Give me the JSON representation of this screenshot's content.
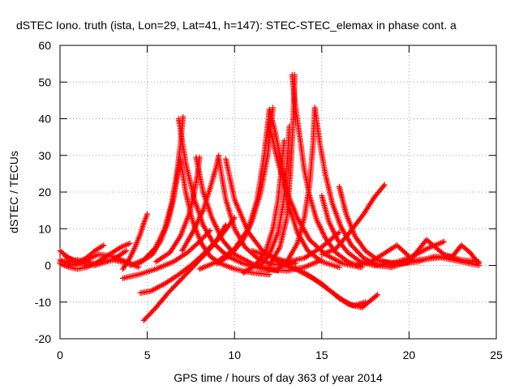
{
  "chart_data": {
    "type": "scatter",
    "title": "dSTEC Iono. truth (ista, Lon=29, Lat=41, h=147): STEC-STEC_elemax in phase cont. a",
    "xlabel": "GPS time / hours of day 363 of year 2014",
    "ylabel": "dSTEC  / TECUs",
    "xlim": [
      0,
      25
    ],
    "ylim": [
      -20,
      60
    ],
    "x_ticks": [
      0,
      5,
      10,
      15,
      20,
      25
    ],
    "y_ticks": [
      -20,
      -10,
      0,
      10,
      20,
      30,
      40,
      50,
      60
    ],
    "grid": true,
    "marker": "plus",
    "color": "#ff0000",
    "series": [
      {
        "x": [
          0.0,
          0.5,
          1.0,
          1.5,
          2.0,
          2.5
        ],
        "y": [
          4.0,
          2.0,
          0.8,
          2.0,
          4.0,
          5.5
        ]
      },
      {
        "x": [
          0.0,
          0.5,
          1.0,
          1.5,
          2.0,
          2.5,
          3.0,
          3.5,
          4.0
        ],
        "y": [
          0.5,
          -0.5,
          -1.0,
          -0.5,
          0.5,
          2.0,
          3.5,
          5.0,
          6.0
        ]
      },
      {
        "x": [
          0.0,
          0.8,
          1.5,
          2.2,
          3.0,
          3.8,
          4.5
        ],
        "y": [
          1.5,
          0.0,
          1.5,
          3.0,
          2.5,
          1.0,
          -0.5
        ]
      },
      {
        "x": [
          0.3,
          1.2,
          2.0,
          3.0,
          3.8
        ],
        "y": [
          2.5,
          0.5,
          0.0,
          1.5,
          4.0
        ]
      },
      {
        "x": [
          0.0,
          1.0,
          2.0,
          3.0,
          4.0
        ],
        "y": [
          1.0,
          1.5,
          0.5,
          1.5,
          0.5
        ]
      },
      {
        "x": [
          3.6,
          4.0,
          4.3,
          4.6,
          4.8,
          5.0
        ],
        "y": [
          -1.0,
          2.0,
          5.0,
          8.5,
          11.5,
          14.0
        ]
      },
      {
        "x": [
          3.6,
          4.5,
          5.5,
          6.5,
          7.3,
          8.0,
          8.6
        ],
        "y": [
          -3.5,
          -2.5,
          -1.0,
          1.0,
          3.5,
          6.5,
          9.5
        ]
      },
      {
        "x": [
          4.6,
          5.2,
          6.0,
          6.8,
          7.5,
          8.2,
          9.0,
          9.5
        ],
        "y": [
          -7.5,
          -7.0,
          -5.0,
          -2.5,
          0.0,
          3.0,
          7.0,
          11.0
        ]
      },
      {
        "x": [
          4.8,
          5.5,
          6.2,
          7.0,
          7.8,
          8.5,
          9.3,
          10.0
        ],
        "y": [
          -15.0,
          -11.5,
          -7.5,
          -3.5,
          0.5,
          4.0,
          8.5,
          13.0
        ]
      },
      {
        "x": [
          4.0,
          4.8,
          5.5,
          6.0,
          6.4,
          6.7,
          6.9,
          7.05
        ],
        "y": [
          0.0,
          1.5,
          5.0,
          10.0,
          17.0,
          25.0,
          33.0,
          40.5
        ]
      },
      {
        "x": [
          4.5,
          5.3,
          5.8,
          6.2,
          6.5,
          6.7,
          6.85
        ],
        "y": [
          0.5,
          3.0,
          7.0,
          12.0,
          18.0,
          23.5,
          28.5
        ]
      },
      {
        "x": [
          5.5,
          6.3,
          6.9,
          7.4,
          7.7,
          7.9,
          8.0
        ],
        "y": [
          1.0,
          3.5,
          8.0,
          14.0,
          20.0,
          25.5,
          29.5
        ]
      },
      {
        "x": [
          6.9,
          7.2,
          7.6,
          8.1,
          8.6,
          9.2,
          10.0,
          11.0,
          12.0
        ],
        "y": [
          29.0,
          20.0,
          12.0,
          6.0,
          2.5,
          0.5,
          -1.0,
          -2.0,
          -2.5
        ]
      },
      {
        "x": [
          6.8,
          7.2,
          7.7,
          8.2,
          8.8,
          9.6,
          10.5,
          11.5,
          12.5
        ],
        "y": [
          40.0,
          28.0,
          18.0,
          11.0,
          6.0,
          2.5,
          0.5,
          -0.8,
          -1.5
        ]
      },
      {
        "x": [
          7.8,
          8.2,
          8.7,
          9.3,
          10.0,
          11.0,
          12.0,
          13.0,
          14.0,
          15.0
        ],
        "y": [
          29.5,
          20.0,
          13.0,
          7.0,
          3.0,
          0.5,
          -1.0,
          -1.5,
          -0.5,
          1.5
        ]
      },
      {
        "x": [
          7.0,
          7.6,
          8.2,
          8.6,
          8.9,
          9.1
        ],
        "y": [
          4.0,
          9.0,
          15.0,
          21.0,
          26.0,
          30.0
        ]
      },
      {
        "x": [
          9.1,
          9.5,
          10.0,
          10.6,
          11.3,
          12.0,
          12.8,
          13.5
        ],
        "y": [
          29.0,
          18.0,
          10.0,
          5.0,
          2.0,
          0.5,
          0.0,
          0.5
        ]
      },
      {
        "x": [
          9.5,
          10.0,
          10.8,
          11.6,
          12.4,
          13.2
        ],
        "y": [
          29.0,
          18.0,
          9.0,
          4.0,
          1.5,
          0.5
        ]
      },
      {
        "x": [
          8.0,
          9.0,
          10.0,
          10.8,
          11.3,
          11.7,
          12.0
        ],
        "y": [
          -1.0,
          1.0,
          4.5,
          10.0,
          18.0,
          30.0,
          42.5
        ]
      },
      {
        "x": [
          9.0,
          9.8,
          10.5,
          11.0,
          11.5,
          11.9,
          12.2
        ],
        "y": [
          0.5,
          3.0,
          7.0,
          12.0,
          20.0,
          30.0,
          43.0
        ]
      },
      {
        "x": [
          12.0,
          12.3,
          12.6,
          12.9,
          13.2,
          13.6,
          14.2,
          15.0,
          16.0
        ],
        "y": [
          42.5,
          37.0,
          30.0,
          22.0,
          15.0,
          9.0,
          4.0,
          1.0,
          -0.5
        ]
      },
      {
        "x": [
          12.1,
          12.5,
          13.0,
          13.6,
          14.3,
          15.2,
          16.2,
          17.2
        ],
        "y": [
          36.0,
          28.0,
          20.0,
          13.0,
          7.0,
          3.0,
          0.5,
          -0.5
        ]
      },
      {
        "x": [
          10.5,
          11.2,
          11.8,
          12.2,
          12.5,
          12.7,
          12.85
        ],
        "y": [
          -2.0,
          0.0,
          4.0,
          10.0,
          18.0,
          27.0,
          34.0
        ]
      },
      {
        "x": [
          11.5,
          12.0,
          12.5,
          12.8,
          13.0,
          13.15
        ],
        "y": [
          0.0,
          3.0,
          9.0,
          17.0,
          27.0,
          38.0
        ]
      },
      {
        "x": [
          12.0,
          12.6,
          13.0,
          13.2,
          13.35,
          13.45
        ],
        "y": [
          0.0,
          5.0,
          13.0,
          25.0,
          38.0,
          52.0
        ]
      },
      {
        "x": [
          13.3,
          13.5,
          13.8,
          14.0,
          14.3,
          14.7,
          15.2,
          15.8,
          16.5,
          17.3
        ],
        "y": [
          52.0,
          43.0,
          33.0,
          26.0,
          19.0,
          12.5,
          7.5,
          3.5,
          1.0,
          -0.5
        ]
      },
      {
        "x": [
          12.5,
          13.0,
          13.6,
          14.0,
          14.3,
          14.5,
          14.6
        ],
        "y": [
          -1.0,
          1.0,
          6.0,
          13.0,
          22.0,
          33.0,
          43.0
        ]
      },
      {
        "x": [
          14.6,
          14.9,
          15.2,
          15.6,
          16.1,
          16.7,
          17.4,
          18.2,
          19.0
        ],
        "y": [
          43.0,
          33.0,
          25.0,
          17.0,
          10.5,
          5.5,
          2.0,
          0.0,
          -0.5
        ]
      },
      {
        "x": [
          15.0,
          15.4,
          15.9,
          16.5,
          17.2,
          18.0,
          18.9
        ],
        "y": [
          19.0,
          12.0,
          7.0,
          3.5,
          1.0,
          0.0,
          0.5
        ]
      },
      {
        "x": [
          16.0,
          16.4,
          16.9,
          17.5,
          18.2,
          19.0
        ],
        "y": [
          21.5,
          14.0,
          8.0,
          4.0,
          1.5,
          0.5
        ]
      },
      {
        "x": [
          15.0,
          15.8,
          16.6,
          17.4,
          18.0,
          18.6
        ],
        "y": [
          3.0,
          4.5,
          9.0,
          14.0,
          18.5,
          22.0
        ]
      },
      {
        "x": [
          12.5,
          13.5,
          14.5,
          15.5,
          16.5,
          17.3,
          18.2
        ],
        "y": [
          1.0,
          -1.0,
          -3.5,
          -7.0,
          -10.5,
          -11.5,
          -8.0
        ]
      },
      {
        "x": [
          13.0,
          14.0,
          15.0,
          16.0,
          16.8,
          17.5
        ],
        "y": [
          0.0,
          -2.0,
          -5.0,
          -9.0,
          -11.0,
          -10.0
        ]
      },
      {
        "x": [
          11.0,
          12.0,
          13.0,
          14.0,
          15.0,
          16.0
        ],
        "y": [
          4.0,
          2.5,
          1.0,
          2.0,
          5.0,
          9.0
        ]
      },
      {
        "x": [
          17.0,
          17.8,
          18.5,
          19.3,
          20.0
        ],
        "y": [
          0.0,
          1.0,
          3.0,
          5.5,
          2.5
        ]
      },
      {
        "x": [
          18.0,
          19.0,
          20.0,
          21.0,
          22.0
        ],
        "y": [
          0.0,
          0.5,
          2.0,
          4.5,
          6.5
        ]
      },
      {
        "x": [
          19.0,
          20.0,
          21.0,
          22.0,
          23.0,
          24.0
        ],
        "y": [
          -0.5,
          1.0,
          7.0,
          3.0,
          1.5,
          1.0
        ]
      },
      {
        "x": [
          19.5,
          20.5,
          21.5,
          22.5,
          23.0,
          23.5,
          24.0
        ],
        "y": [
          0.5,
          1.5,
          2.0,
          2.5,
          5.5,
          3.5,
          0.5
        ]
      },
      {
        "x": [
          18.5,
          19.5,
          20.5,
          21.5,
          22.5,
          23.5,
          24.0
        ],
        "y": [
          1.0,
          0.5,
          1.0,
          2.5,
          1.5,
          0.5,
          0.0
        ]
      }
    ]
  }
}
